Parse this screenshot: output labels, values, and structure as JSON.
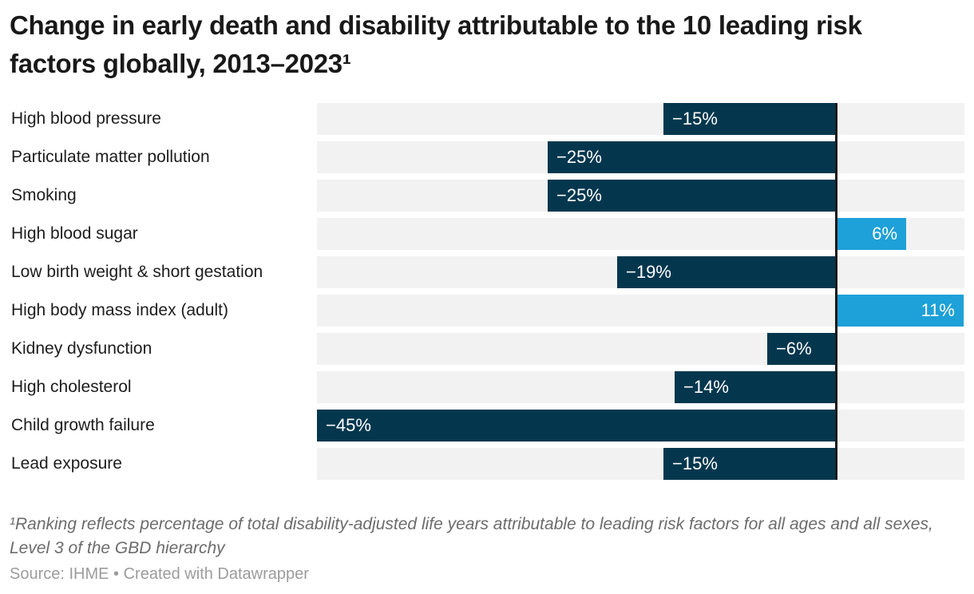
{
  "header": {
    "title": "Change in early death and disability attributable to the 10 leading risk factors globally, 2013–2023¹"
  },
  "chart_data": {
    "type": "bar",
    "orientation": "horizontal",
    "title": "Change in early death and disability attributable to the 10 leading risk factors globally, 2013–2023¹",
    "categories": [
      "High blood pressure",
      "Particulate matter pollution",
      "Smoking",
      "High blood sugar",
      "Low birth weight & short gestation",
      "High body mass index (adult)",
      "Kidney dysfunction",
      "High cholesterol",
      "Child growth failure",
      "Lead exposure"
    ],
    "values": [
      -15,
      -25,
      -25,
      6,
      -19,
      11,
      -6,
      -14,
      -45,
      -15
    ],
    "value_labels": [
      "−15%",
      "−25%",
      "−25%",
      "6%",
      "−19%",
      "11%",
      "−6%",
      "−14%",
      "−45%",
      "−15%"
    ],
    "unit": "%",
    "xlim": [
      -45,
      11
    ],
    "grid": false,
    "legend": "none",
    "colors": {
      "negative_bar": "#04374e",
      "positive_bar": "#1da1d8",
      "row_track": "#f2f2f2",
      "zero_line": "#1a1a1a",
      "value_text": "#ffffff"
    }
  },
  "footnote": {
    "text": "¹Ranking reflects percentage of total disability-adjusted life years attributable to leading risk factors for all ages and all sexes, Level 3 of the GBD hierarchy"
  },
  "source": {
    "text": "Source: IHME • Created with Datawrapper"
  }
}
